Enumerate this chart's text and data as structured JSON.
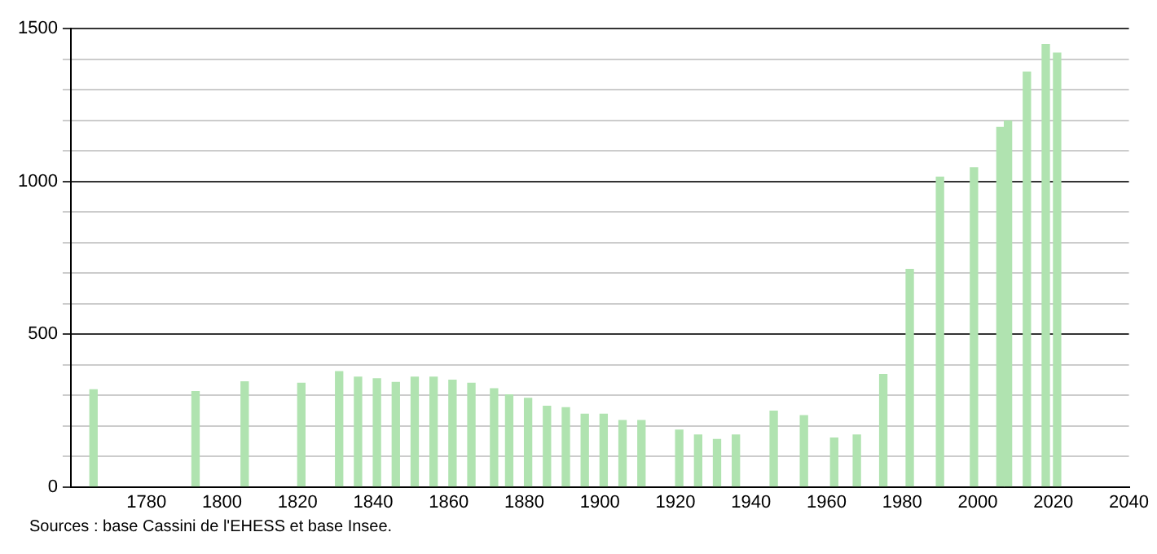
{
  "chart_data": {
    "type": "bar",
    "x": [
      1766,
      1793,
      1806,
      1821,
      1831,
      1836,
      1841,
      1846,
      1851,
      1856,
      1861,
      1866,
      1872,
      1876,
      1881,
      1886,
      1891,
      1896,
      1901,
      1906,
      1911,
      1921,
      1926,
      1931,
      1936,
      1946,
      1954,
      1962,
      1968,
      1975,
      1982,
      1990,
      1999,
      2006,
      2008,
      2013,
      2018,
      2021
    ],
    "values": [
      318,
      312,
      344,
      339,
      377,
      359,
      354,
      342,
      359,
      359,
      349,
      339,
      321,
      301,
      290,
      264,
      259,
      238,
      238,
      217,
      217,
      186,
      170,
      155,
      170,
      248,
      233,
      160,
      170,
      368,
      712,
      1014,
      1045,
      1177,
      1198,
      1358,
      1448,
      1420
    ],
    "color": "#b0e3b0",
    "xlim": [
      1760,
      2040
    ],
    "xticks": [
      1780,
      1800,
      1820,
      1840,
      1860,
      1880,
      1900,
      1920,
      1940,
      1960,
      1980,
      2000,
      2020,
      2040
    ],
    "ylim": [
      0,
      1500
    ],
    "yticks": [
      0,
      {
        "value": 100,
        "label": null
      },
      {
        "value": 200,
        "label": null
      },
      {
        "value": 300,
        "label": null
      },
      {
        "value": 400,
        "label": null
      },
      500,
      {
        "value": 600,
        "label": null
      },
      {
        "value": 700,
        "label": null
      },
      {
        "value": 800,
        "label": null
      },
      {
        "value": 900,
        "label": null
      },
      1000,
      {
        "value": 1100,
        "label": null
      },
      {
        "value": 1200,
        "label": null
      },
      {
        "value": 1300,
        "label": null
      },
      {
        "value": 1400,
        "label": null
      },
      1500
    ],
    "grid": "y",
    "legend": false,
    "annotations": [
      "Sources : base Cassini de l'EHESS et base Insee."
    ]
  }
}
